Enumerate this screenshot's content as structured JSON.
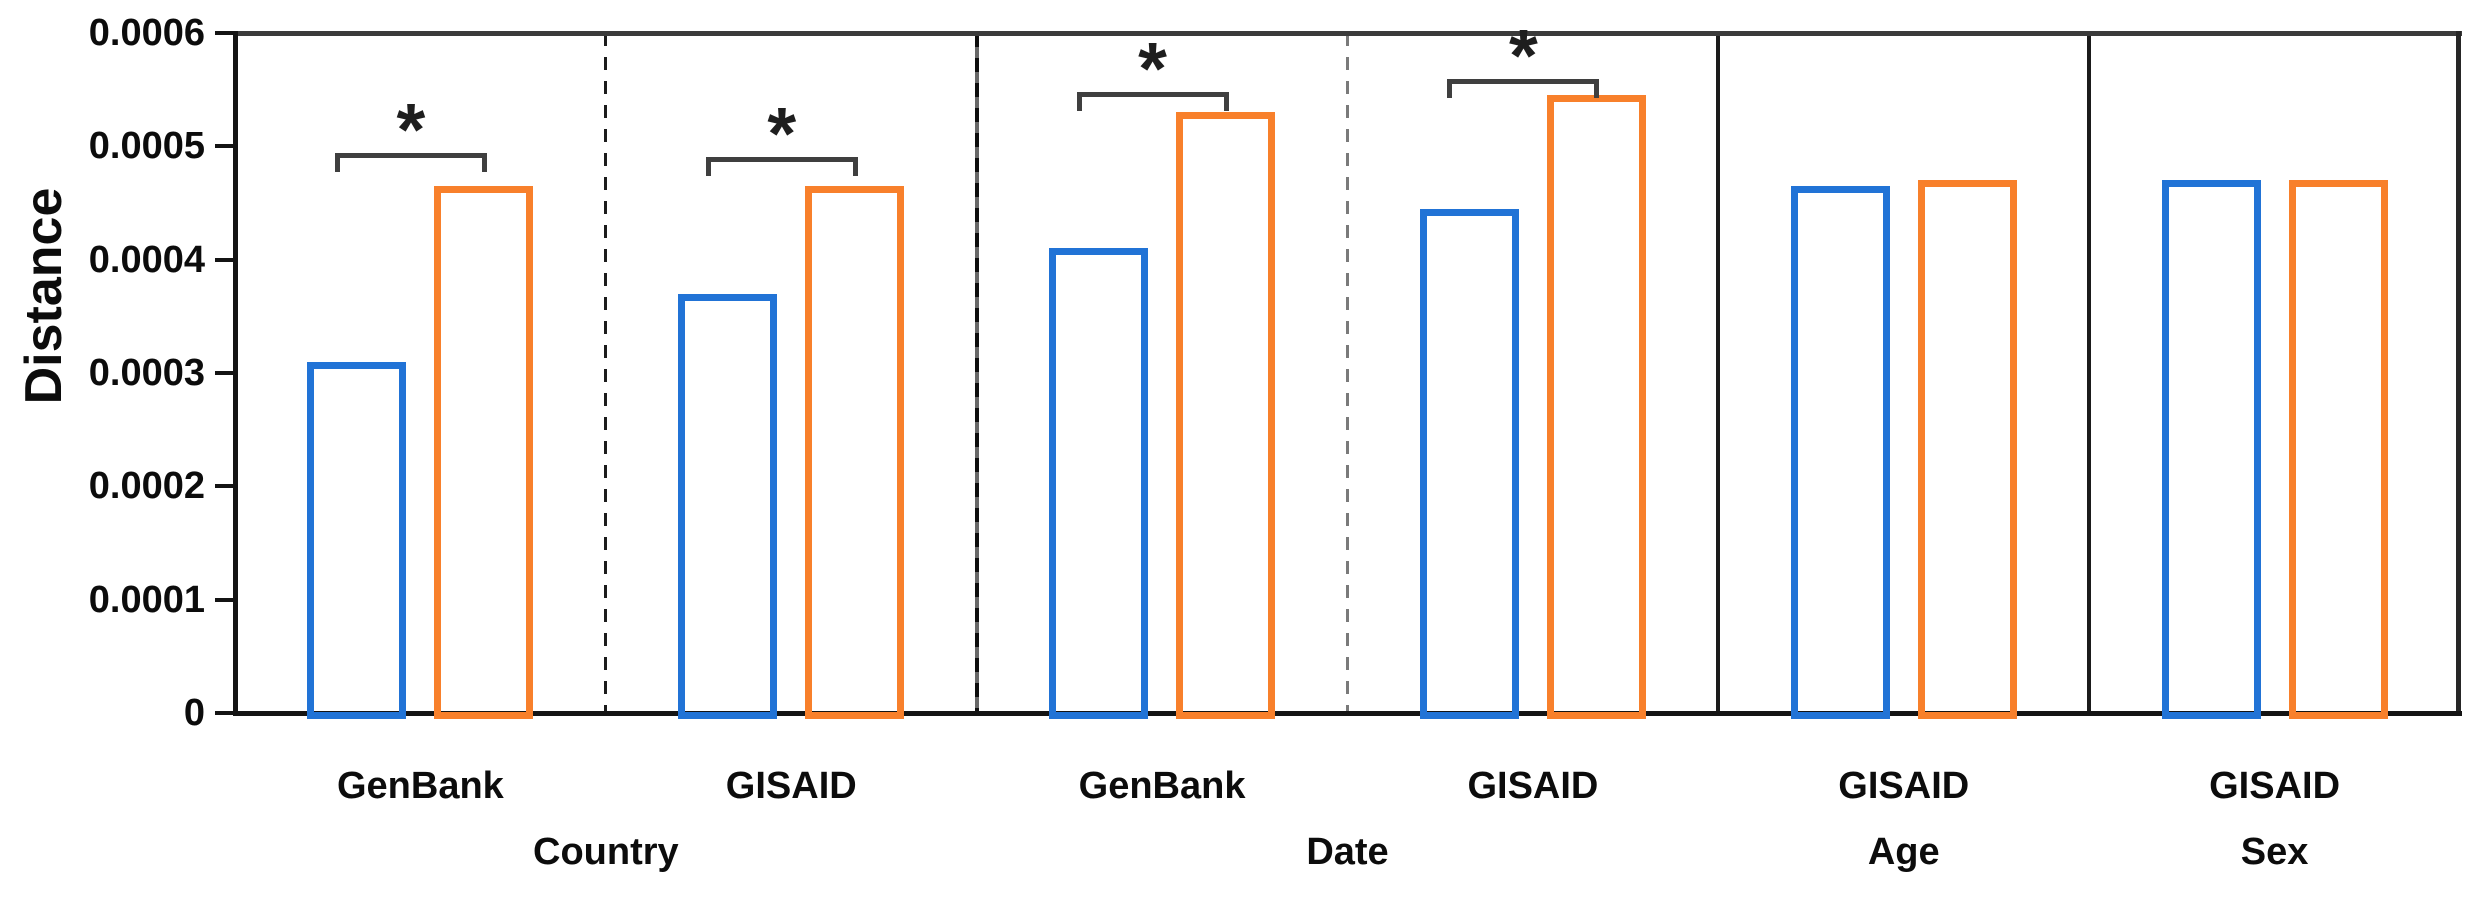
{
  "chart_data": {
    "type": "bar",
    "title": "",
    "ylabel": "Distance",
    "xlabel": "",
    "ylim": [
      0,
      0.0006
    ],
    "yticks": [
      0,
      0.0001,
      0.0002,
      0.0003,
      0.0004,
      0.0005,
      0.0006
    ],
    "ytick_labels": [
      "0",
      "0.0001",
      "0.0002",
      "0.0003",
      "0.0004",
      "0.0005",
      "0.0006"
    ],
    "grid": false,
    "legend_position": "none",
    "series_colors": {
      "blue": "#2173D6",
      "orange": "#F8802B"
    },
    "axis_color": "#141414",
    "top_border_color": "#3b3b3b",
    "bracket_color": "#3f3f3f",
    "sig_marker": "*",
    "groups": [
      {
        "label": "GenBank",
        "section": "Country",
        "values": {
          "blue": 0.00031,
          "orange": 0.000465
        },
        "significant": true,
        "sig_line_y": 0.000494
      },
      {
        "label": "GISAID",
        "section": "Country",
        "values": {
          "blue": 0.00037,
          "orange": 0.000465
        },
        "significant": true,
        "sig_line_y": 0.000491
      },
      {
        "label": "GenBank",
        "section": "Date",
        "values": {
          "blue": 0.00041,
          "orange": 0.00053
        },
        "significant": true,
        "sig_line_y": 0.000548
      },
      {
        "label": "GISAID",
        "section": "Date",
        "values": {
          "blue": 0.000445,
          "orange": 0.000545
        },
        "significant": true,
        "sig_line_y": 0.000559
      },
      {
        "label": "GISAID",
        "section": "Age",
        "values": {
          "blue": 0.000465,
          "orange": 0.00047
        },
        "significant": false,
        "sig_line_y": null
      },
      {
        "label": "GISAID",
        "section": "Sex",
        "values": {
          "blue": 0.00047,
          "orange": 0.00047
        },
        "significant": false,
        "sig_line_y": null
      }
    ],
    "sections": [
      {
        "label": "Country",
        "slots": [
          0,
          1
        ]
      },
      {
        "label": "Date",
        "slots": [
          2,
          3
        ]
      },
      {
        "label": "Age",
        "slots": [
          4
        ]
      },
      {
        "label": "Sex",
        "slots": [
          5
        ]
      }
    ],
    "separators": [
      {
        "after_slot": 0,
        "style": "dashed-black"
      },
      {
        "after_slot": 1,
        "style": "dashed-over-solid"
      },
      {
        "after_slot": 2,
        "style": "dashed-gray"
      },
      {
        "after_slot": 3,
        "style": "solid"
      },
      {
        "after_slot": 4,
        "style": "solid"
      }
    ]
  }
}
